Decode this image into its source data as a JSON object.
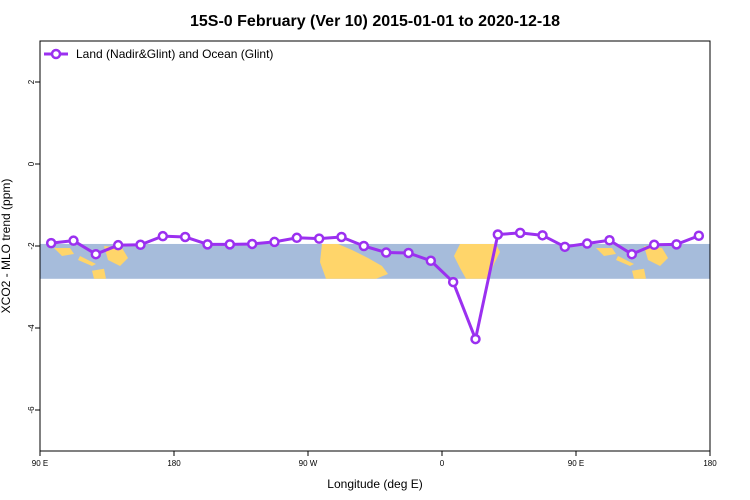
{
  "chart_data": {
    "type": "line",
    "title": "15S-0 February (Ver 10)   2015-01-01 to 2020-12-18",
    "xlabel": "Longitude (deg E)",
    "ylabel": "XCO2 - MLO trend (ppm)",
    "xlim": [
      90,
      540
    ],
    "ylim": [
      -7,
      3
    ],
    "x_ticks": [
      {
        "value": 90,
        "label": "90 E"
      },
      {
        "value": 180,
        "label": "180"
      },
      {
        "value": 270,
        "label": "90 W"
      },
      {
        "value": 360,
        "label": "0"
      },
      {
        "value": 450,
        "label": "90 E"
      },
      {
        "value": 540,
        "label": "180"
      }
    ],
    "y_ticks": [
      {
        "value": 2,
        "label": "2"
      },
      {
        "value": 0,
        "label": "0"
      },
      {
        "value": -2,
        "label": "-2"
      },
      {
        "value": -4,
        "label": "-4"
      },
      {
        "value": -6,
        "label": "-6"
      }
    ],
    "map_band": {
      "ymin": -2.8,
      "ymax": -1.95,
      "ocean_color": "#a6bcdb",
      "land_color": "#ffd56a"
    },
    "legend": {
      "position": "top-left"
    },
    "series": [
      {
        "name": "Land (Nadir&Glint) and Ocean (Glint)",
        "color": "#9b30f0",
        "x": [
          97.5,
          112.5,
          127.5,
          142.5,
          157.5,
          172.5,
          187.5,
          202.5,
          217.5,
          232.5,
          247.5,
          262.5,
          277.5,
          292.5,
          307.5,
          322.5,
          337.5,
          352.5,
          367.5,
          382.5,
          397.5,
          412.5,
          427.5,
          442.5,
          457.5,
          472.5,
          487.5,
          502.5,
          517.5,
          532.5
        ],
        "y": [
          -1.93,
          -1.87,
          -2.2,
          -1.98,
          -1.97,
          -1.76,
          -1.78,
          -1.96,
          -1.96,
          -1.95,
          -1.9,
          -1.8,
          -1.82,
          -1.78,
          -2.0,
          -2.16,
          -2.17,
          -2.36,
          -2.88,
          -4.27,
          -1.72,
          -1.68,
          -1.74,
          -2.02,
          -1.94,
          -1.86,
          -2.2,
          -1.97,
          -1.96,
          -1.75
        ]
      }
    ]
  }
}
